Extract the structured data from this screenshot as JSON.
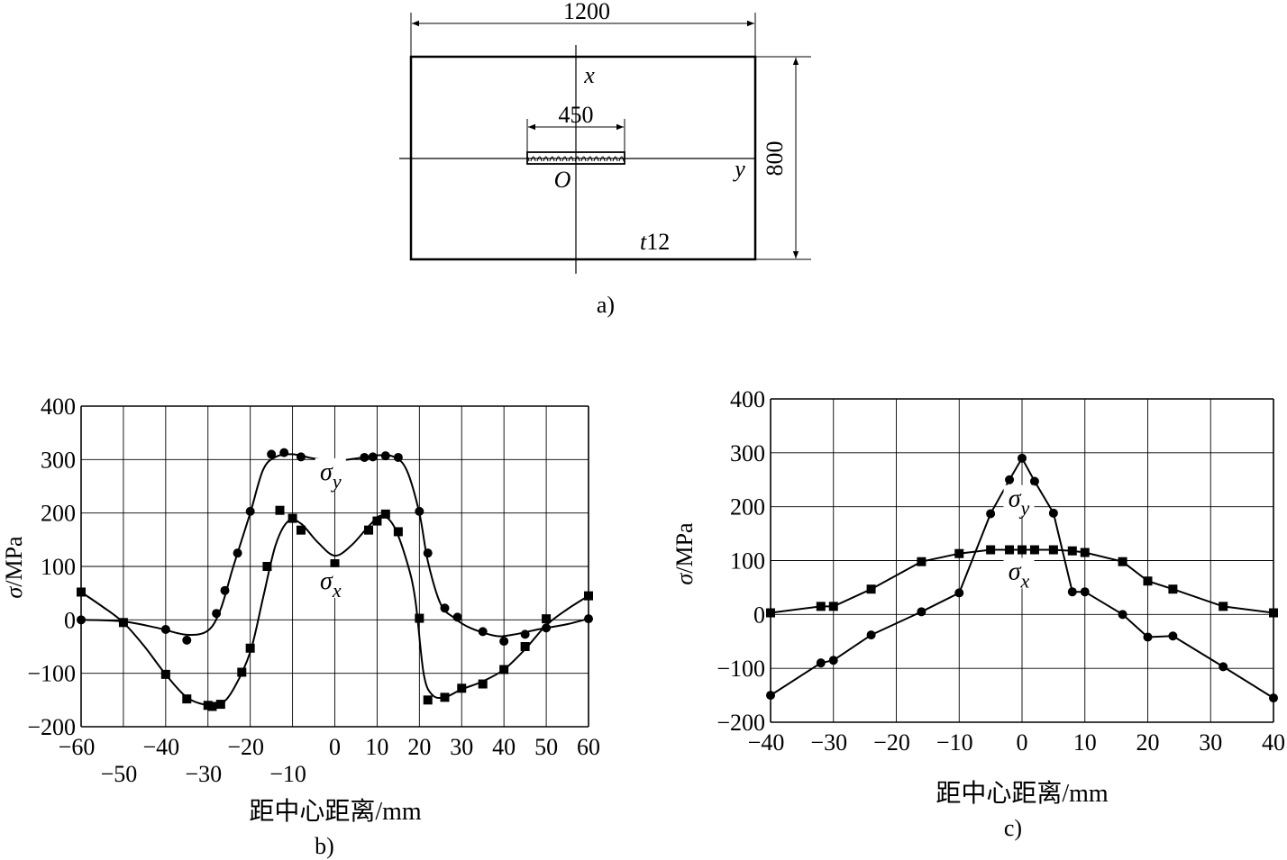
{
  "panel_a": {
    "width_label": "1200",
    "height_label": "800",
    "weld_label": "450",
    "axis_x": "x",
    "axis_y": "y",
    "origin": "O",
    "thickness_prefix": "t",
    "thickness_value": "12",
    "caption": "a)"
  },
  "chart_data": [
    {
      "id": "b",
      "type": "line",
      "caption": "b)",
      "xlabel": "距中心距离/mm",
      "ylabel_symbol": "σ",
      "ylabel_unit": "/MPa",
      "xlim": [
        -60,
        60
      ],
      "ylim": [
        -200,
        400
      ],
      "grid": true,
      "xticks_upper": [
        "-60",
        "-40",
        "-20",
        "0",
        "10",
        "20",
        "30",
        "40",
        "50",
        "60"
      ],
      "xticks_upper_values": [
        -60,
        -40,
        -20,
        0,
        10,
        20,
        30,
        40,
        50,
        60
      ],
      "xticks_lower": [
        "-50",
        "-30",
        "-10"
      ],
      "xticks_lower_values": [
        -50,
        -30,
        -10
      ],
      "yticks": [
        "400",
        "300",
        "200",
        "100",
        "0",
        "-100",
        "-200"
      ],
      "yticks_values": [
        400,
        300,
        200,
        100,
        0,
        -100,
        -200
      ],
      "series": [
        {
          "name": "σy",
          "sym": "σ",
          "sub": "y",
          "marker": "circle",
          "label_at": [
            -1,
            262
          ],
          "points": [
            [
              -60,
              0
            ],
            [
              -40,
              -18
            ],
            [
              -35,
              -38
            ],
            [
              -28,
              12
            ],
            [
              -26,
              55
            ],
            [
              -23,
              125
            ],
            [
              -20,
              203
            ],
            [
              -15,
              310
            ],
            [
              -12,
              313
            ],
            [
              -8,
              305
            ],
            [
              0,
              292
            ],
            [
              7,
              304
            ],
            [
              9,
              305
            ],
            [
              12,
              307
            ],
            [
              15,
              304
            ],
            [
              20,
              203
            ],
            [
              22,
              125
            ],
            [
              26,
              22
            ],
            [
              29,
              5
            ],
            [
              35,
              -22
            ],
            [
              40,
              -40
            ],
            [
              45,
              -27
            ],
            [
              50,
              -15
            ],
            [
              60,
              2
            ]
          ],
          "curve": [
            [
              -60,
              0
            ],
            [
              -50,
              -3
            ],
            [
              -42,
              -15
            ],
            [
              -35,
              -28
            ],
            [
              -30,
              -20
            ],
            [
              -27,
              20
            ],
            [
              -24,
              100
            ],
            [
              -20,
              200
            ],
            [
              -17,
              280
            ],
            [
              -14,
              305
            ],
            [
              -10,
              310
            ],
            [
              -5,
              302
            ],
            [
              0,
              298
            ],
            [
              5,
              302
            ],
            [
              10,
              308
            ],
            [
              14,
              305
            ],
            [
              17,
              280
            ],
            [
              20,
              200
            ],
            [
              22,
              110
            ],
            [
              25,
              30
            ],
            [
              28,
              5
            ],
            [
              32,
              -15
            ],
            [
              38,
              -30
            ],
            [
              42,
              -28
            ],
            [
              48,
              -18
            ],
            [
              55,
              -8
            ],
            [
              60,
              2
            ]
          ]
        },
        {
          "name": "σx",
          "sym": "σ",
          "sub": "x",
          "marker": "square",
          "label_at": [
            -1,
            58
          ],
          "points": [
            [
              -60,
              52
            ],
            [
              -50,
              -5
            ],
            [
              -40,
              -102
            ],
            [
              -35,
              -148
            ],
            [
              -30,
              -160
            ],
            [
              -29,
              -162
            ],
            [
              -27,
              -158
            ],
            [
              -22,
              -98
            ],
            [
              -20,
              -53
            ],
            [
              -16,
              100
            ],
            [
              -13,
              205
            ],
            [
              -10,
              190
            ],
            [
              -8,
              168
            ],
            [
              0,
              105
            ],
            [
              8,
              168
            ],
            [
              10,
              185
            ],
            [
              12,
              198
            ],
            [
              15,
              165
            ],
            [
              20,
              3
            ],
            [
              22,
              -150
            ],
            [
              26,
              -145
            ],
            [
              30,
              -128
            ],
            [
              35,
              -120
            ],
            [
              40,
              -93
            ],
            [
              45,
              -50
            ],
            [
              50,
              2
            ],
            [
              60,
              45
            ]
          ],
          "curve": [
            [
              -60,
              52
            ],
            [
              -55,
              25
            ],
            [
              -50,
              -5
            ],
            [
              -45,
              -50
            ],
            [
              -40,
              -102
            ],
            [
              -35,
              -145
            ],
            [
              -30,
              -160
            ],
            [
              -27,
              -158
            ],
            [
              -24,
              -130
            ],
            [
              -20,
              -60
            ],
            [
              -17,
              40
            ],
            [
              -14,
              140
            ],
            [
              -11,
              185
            ],
            [
              -8,
              180
            ],
            [
              -4,
              145
            ],
            [
              0,
              120
            ],
            [
              4,
              140
            ],
            [
              8,
              175
            ],
            [
              11,
              195
            ],
            [
              14,
              175
            ],
            [
              17,
              110
            ],
            [
              19,
              40
            ],
            [
              21,
              -100
            ],
            [
              23,
              -140
            ],
            [
              26,
              -145
            ],
            [
              30,
              -130
            ],
            [
              35,
              -115
            ],
            [
              40,
              -93
            ],
            [
              45,
              -55
            ],
            [
              50,
              -10
            ],
            [
              55,
              20
            ],
            [
              60,
              45
            ]
          ]
        }
      ]
    },
    {
      "id": "c",
      "type": "line",
      "caption": "c)",
      "xlabel": "距中心距离/mm",
      "ylabel_symbol": "σ",
      "ylabel_unit": "/MPa",
      "xlim": [
        -40,
        40
      ],
      "ylim": [
        -200,
        400
      ],
      "grid": true,
      "xticks": [
        "-40",
        "-30",
        "-20",
        "-10",
        "0",
        "10",
        "20",
        "30",
        "40"
      ],
      "xticks_values": [
        -40,
        -30,
        -20,
        -10,
        0,
        10,
        20,
        30,
        40
      ],
      "yticks": [
        "400",
        "300",
        "200",
        "100",
        "0",
        "-100",
        "-200"
      ],
      "yticks_values": [
        400,
        300,
        200,
        100,
        0,
        -100,
        -200
      ],
      "series": [
        {
          "name": "σy",
          "sym": "σ",
          "sub": "y",
          "marker": "circle",
          "label_at": [
            -0.5,
            200
          ],
          "points": [
            [
              -40,
              -150
            ],
            [
              -32,
              -90
            ],
            [
              -30,
              -85
            ],
            [
              -24,
              -38
            ],
            [
              -16,
              5
            ],
            [
              -10,
              40
            ],
            [
              -5,
              187
            ],
            [
              -2,
              250
            ],
            [
              0,
              290
            ],
            [
              2,
              247
            ],
            [
              5,
              188
            ],
            [
              8,
              42
            ],
            [
              10,
              42
            ],
            [
              16,
              0
            ],
            [
              20,
              -42
            ],
            [
              24,
              -40
            ],
            [
              32,
              -97
            ],
            [
              40,
              -155
            ]
          ]
        },
        {
          "name": "σx",
          "sym": "σ",
          "sub": "x",
          "marker": "square",
          "label_at": [
            -0.5,
            65
          ],
          "points": [
            [
              -40,
              3
            ],
            [
              -32,
              15
            ],
            [
              -30,
              15
            ],
            [
              -24,
              47
            ],
            [
              -16,
              98
            ],
            [
              -10,
              113
            ],
            [
              -5,
              120
            ],
            [
              -2,
              120
            ],
            [
              0,
              120
            ],
            [
              2,
              120
            ],
            [
              5,
              120
            ],
            [
              8,
              118
            ],
            [
              10,
              115
            ],
            [
              16,
              98
            ],
            [
              20,
              62
            ],
            [
              24,
              47
            ],
            [
              32,
              15
            ],
            [
              40,
              3
            ]
          ]
        }
      ]
    }
  ]
}
